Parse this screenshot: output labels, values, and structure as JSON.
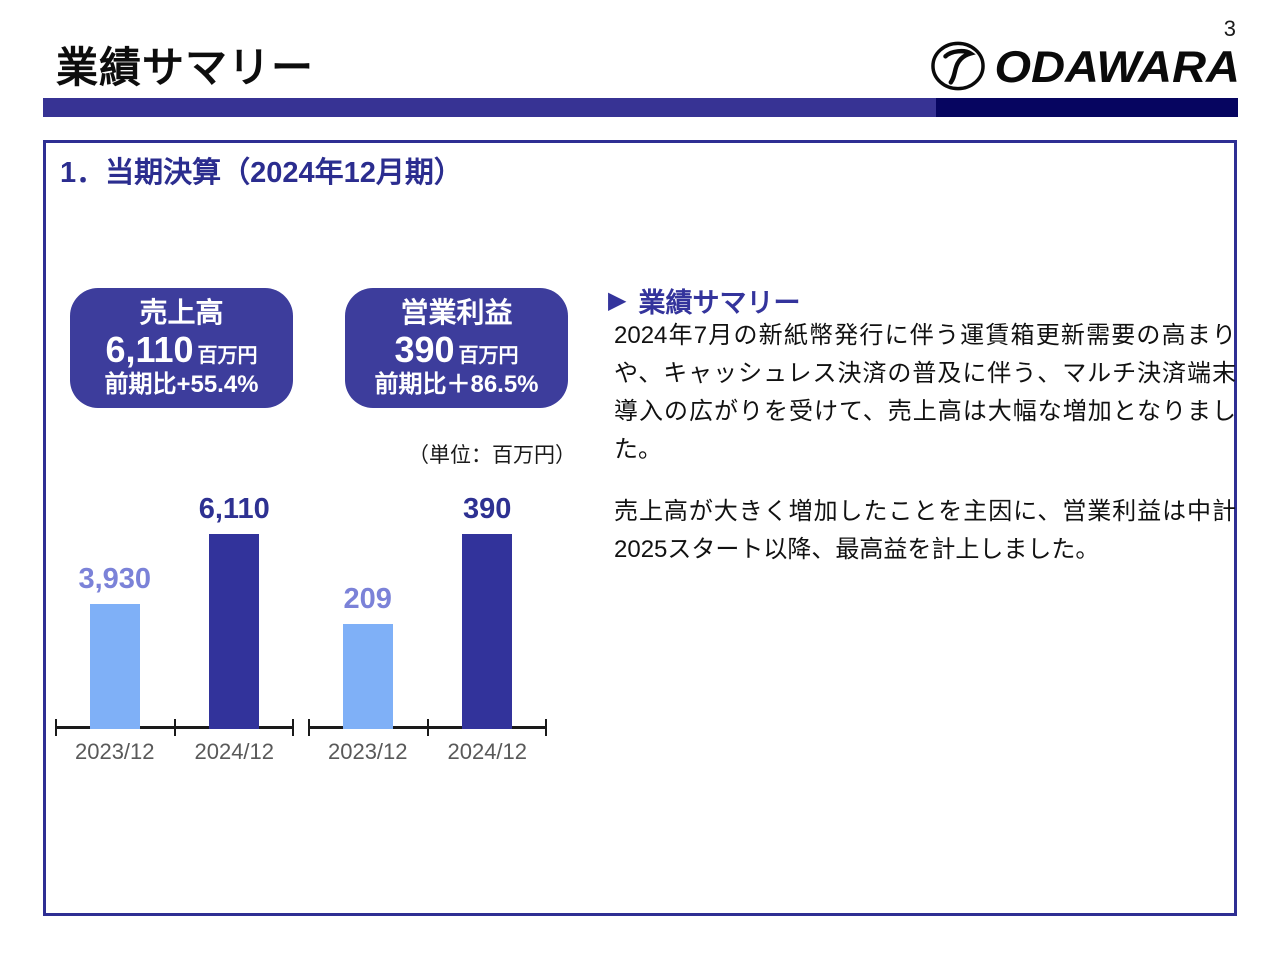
{
  "page": {
    "number": "3"
  },
  "header": {
    "title": "業績サマリー",
    "logo_brand": "ODAWARA"
  },
  "colors": {
    "header_bar_left": "#373394",
    "header_bar_right": "#060560",
    "box_border": "#2e2f93",
    "stat_box_bg": "#3d3d9c",
    "bar_prev": "#7fb0f7",
    "bar_curr": "#32339b",
    "label_prev": "#7b82d8",
    "label_curr": "#2e3192",
    "section_title": "#2b2d8f",
    "summary_heading": "#34349c"
  },
  "section": {
    "title": "1．当期決算（2024年12月期）"
  },
  "stat_boxes": [
    {
      "title": "売上高",
      "value": "6,110",
      "unit": "百万円",
      "change": "前期比+55.4%"
    },
    {
      "title": "営業利益",
      "value": "390",
      "unit": "百万円",
      "change": "前期比＋86.5%"
    }
  ],
  "unit_note": "（単位：百万円）",
  "summary": {
    "heading": "業績サマリー",
    "pointer": "▶",
    "paragraphs": [
      "2024年7月の新紙幣発行に伴う運賃箱更新需要の高まりや、キャッシュレス決済の普及に伴う、マルチ決済端末導入の広がりを受けて、売上高は大幅な増加となりました。",
      "売上高が大きく増加したことを主因に、営業利益は中計2025スタート以降、最高益を計上しました。"
    ]
  },
  "chart_data": [
    {
      "type": "bar",
      "title": "売上高",
      "unit": "百万円",
      "categories": [
        "2023/12",
        "2024/12"
      ],
      "values": [
        3930,
        6110
      ],
      "value_labels": [
        "3,930",
        "6,110"
      ],
      "bar_colors": [
        "#7fb0f7",
        "#32339b"
      ],
      "label_colors": [
        "#7b82d8",
        "#2e3192"
      ],
      "ylim": [
        0,
        6300
      ],
      "grid": false,
      "legend": "none"
    },
    {
      "type": "bar",
      "title": "営業利益",
      "unit": "百万円",
      "categories": [
        "2023/12",
        "2024/12"
      ],
      "values": [
        209,
        390
      ],
      "value_labels": [
        "209",
        "390"
      ],
      "bar_colors": [
        "#7fb0f7",
        "#32339b"
      ],
      "label_colors": [
        "#7b82d8",
        "#2e3192"
      ],
      "ylim": [
        0,
        402
      ],
      "grid": false,
      "legend": "none"
    }
  ]
}
